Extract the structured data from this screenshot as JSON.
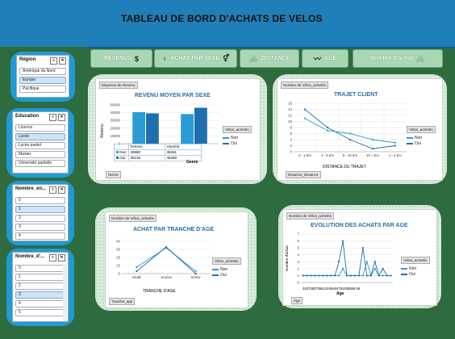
{
  "banner": {
    "title": "TABLEAU DE BORD D'ACHATS DE VELOS"
  },
  "topbar": [
    {
      "label": "REVENUS",
      "icon": "$"
    },
    {
      "label": "ACHAT PAR SEXE",
      "icon": "⚥"
    },
    {
      "label": "DISTANCE",
      "icon": "🚲"
    },
    {
      "label": "AGE",
      "icon": "〰"
    },
    {
      "label": "Nombre d'achat",
      "icon": "🚲"
    }
  ],
  "slicers": {
    "region": {
      "title": "Région",
      "items": [
        "Amérique du Nord",
        "Europe",
        "Pacifique"
      ],
      "selected": [
        1
      ]
    },
    "education": {
      "title": "Education",
      "items": [
        "Licence",
        "Lycée",
        "Lycée partiel",
        "Master",
        "Université partielle"
      ],
      "selected": [
        1
      ]
    },
    "number1": {
      "title": "Nombre_en...",
      "items": [
        "0",
        "1",
        "2",
        "3",
        "4"
      ],
      "selected": [
        1
      ]
    },
    "number2": {
      "title": "Nombre_d'...",
      "items": [
        "0",
        "1",
        "2",
        "3",
        "4",
        "5"
      ],
      "selected": [
        3
      ]
    }
  },
  "charts": {
    "revenu": {
      "pill_top": "Moyenne de Revenu",
      "title": "REVENU MOYEN PAR SEXE",
      "ylabel": "Revenu",
      "xlabel": "Genre",
      "legend_head": "Vélos_achetés",
      "pill_bottom": "Genre",
      "table": {
        "headers": [
          "",
          "Femme",
          "Homme"
        ],
        "rows": [
          [
            "Non",
            "40680",
            "38261"
          ],
          [
            "Oui",
            "39136",
            "46369"
          ]
        ]
      }
    },
    "trajet": {
      "pill_top": "Nombre de Vélos_achetés",
      "title": "TRAJET CLIENT",
      "xlabel": "DISTANCE DU TRAJET",
      "legend_head": "Vélos_achetés",
      "pill_bottom": "Distance_Distance"
    },
    "tranche": {
      "pill_top": "Nombre de Vélos_achetés",
      "title": "ACHAT PAR TRANCHE D'AGE",
      "xlabel": "TRANCHE D'AGE",
      "legend_head": "Vélos_achetés",
      "pill_bottom": "Tranche_age"
    },
    "evolution": {
      "pill_top": "Nombre de Vélos_achetés",
      "title": "EVOLUTION  DES ACHATS PAR AGE",
      "ylabel": "Nombre d'achat",
      "xlabel": "Age",
      "legend_head": "Vélos_achetés",
      "pill_bottom": "Âge",
      "xticks_text": "3437383739414245464751535556 59"
    }
  },
  "chart_data": [
    {
      "type": "bar",
      "title": "REVENU MOYEN PAR SEXE",
      "xlabel": "Genre",
      "ylabel": "Revenu",
      "categories": [
        "Femme",
        "Homme"
      ],
      "series": [
        {
          "name": "Non",
          "values": [
            40680,
            38261
          ]
        },
        {
          "name": "Oui",
          "values": [
            39136,
            46369
          ]
        }
      ],
      "ylim": [
        0,
        50000
      ],
      "yticks": [
        "0",
        "10000",
        "20000",
        "30000",
        "40000",
        "50000"
      ],
      "colors": [
        "#2b9bd6",
        "#1e6fb0"
      ]
    },
    {
      "type": "line",
      "title": "TRAJET CLIENT",
      "xlabel": "DISTANCE DU TRAJET",
      "categories": [
        "0 - 1 Km",
        "2 - 5 Km",
        "5 - 10 Km",
        "10 + Km",
        "1 - 2 Km"
      ],
      "series": [
        {
          "name": "Non",
          "values": [
            11,
            7,
            6,
            4,
            3
          ]
        },
        {
          "name": "Oui",
          "values": [
            14,
            8,
            4,
            1,
            2
          ]
        }
      ],
      "ylim": [
        0,
        16
      ],
      "yticks": [
        "0",
        "2",
        "4",
        "6",
        "8",
        "10",
        "12",
        "14",
        "16"
      ],
      "colors": [
        "#2b9bd6",
        "#1e6fb0"
      ]
    },
    {
      "type": "line",
      "title": "ACHAT PAR TRANCHE D'AGE",
      "xlabel": "TRANCHE D'AGE",
      "categories": [
        "Adulte",
        "Jeunes",
        "Senior"
      ],
      "series": [
        {
          "name": "Non",
          "values": [
            8,
            32,
            3
          ]
        },
        {
          "name": "Oui",
          "values": [
            3,
            33,
            0
          ]
        }
      ],
      "ylim": [
        0,
        40
      ],
      "yticks": [
        "0",
        "10",
        "20",
        "30",
        "40"
      ],
      "colors": [
        "#2b9bd6",
        "#1e6fb0"
      ]
    },
    {
      "type": "line",
      "title": "EVOLUTION  DES ACHATS PAR AGE",
      "xlabel": "Age",
      "ylabel": "Nombre d'achat",
      "series": [
        {
          "name": "Non",
          "values": [
            1,
            1,
            1,
            1,
            1,
            1,
            1,
            1,
            1,
            1,
            2,
            1,
            1,
            1,
            1,
            1,
            3,
            1,
            2,
            1,
            1,
            1,
            1
          ]
        },
        {
          "name": "Oui",
          "values": [
            1,
            1,
            1,
            1,
            1,
            1,
            1,
            1,
            1,
            3,
            6,
            1,
            1,
            1,
            1,
            5,
            1,
            1,
            3,
            1,
            2,
            1,
            1
          ]
        }
      ],
      "ylim": [
        0,
        7
      ],
      "yticks": [
        "0",
        "1",
        "2",
        "3",
        "4",
        "5",
        "6",
        "7"
      ],
      "colors": [
        "#2b9bd6",
        "#1e6fb0"
      ]
    }
  ],
  "legend": {
    "non": "Non",
    "oui": "Oui"
  },
  "colors": {
    "banner": "#1f7fb8",
    "background": "#2e6b3e",
    "slicer_frame": "#1f9ad6",
    "accent": "#2b9bd6",
    "accent_dark": "#1e6fb0"
  }
}
